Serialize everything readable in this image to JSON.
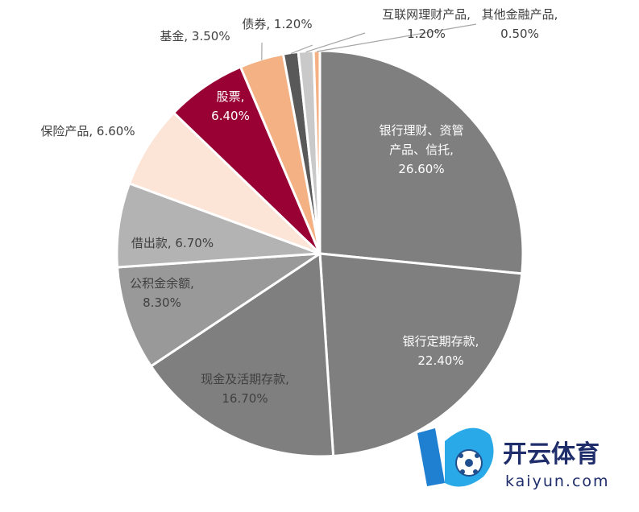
{
  "chart_data": {
    "type": "pie",
    "title": "",
    "slices": [
      {
        "name": "银行理财、资管产品、信托",
        "value": 26.6,
        "label": [
          "银行理财、资管",
          "产品、信托,",
          "26.60%"
        ],
        "color": "#7f7f7f"
      },
      {
        "name": "银行定期存款",
        "value": 22.4,
        "label": [
          "银行定期存款,",
          "22.40%"
        ],
        "color": "#7f7f7f"
      },
      {
        "name": "现金及活期存款",
        "value": 16.7,
        "label": [
          "现金及活期存款,",
          "16.70%"
        ],
        "color": "#7f7f7f"
      },
      {
        "name": "公积金余额",
        "value": 8.3,
        "label": [
          "公积金余额,",
          "8.30%"
        ],
        "color": "#999999"
      },
      {
        "name": "借出款",
        "value": 6.7,
        "label": [
          "借出款, 6.70%"
        ],
        "color": "#b3b3b3"
      },
      {
        "name": "保险产品",
        "value": 6.6,
        "label": [
          "保险产品, 6.60%"
        ],
        "color": "#fce4d6"
      },
      {
        "name": "股票",
        "value": 6.4,
        "label": [
          "股票,",
          "6.40%"
        ],
        "color": "#990033"
      },
      {
        "name": "基金",
        "value": 3.5,
        "label": [
          "基金, 3.50%"
        ],
        "color": "#f4b183"
      },
      {
        "name": "债券",
        "value": 1.2,
        "label": [
          "债券, 1.20%"
        ],
        "color": "#595959"
      },
      {
        "name": "互联网理财产品",
        "value": 1.2,
        "label": [
          "互联网理财产品,",
          "1.20%"
        ],
        "color": "#c9c9c9"
      },
      {
        "name": "其他金融产品",
        "value": 0.5,
        "label": [
          "其他金融产品,",
          "0.50%"
        ],
        "color": "#f4b183"
      }
    ]
  },
  "watermark": {
    "brand_cn": "开云体育",
    "brand_en": "kaiyun.com"
  }
}
